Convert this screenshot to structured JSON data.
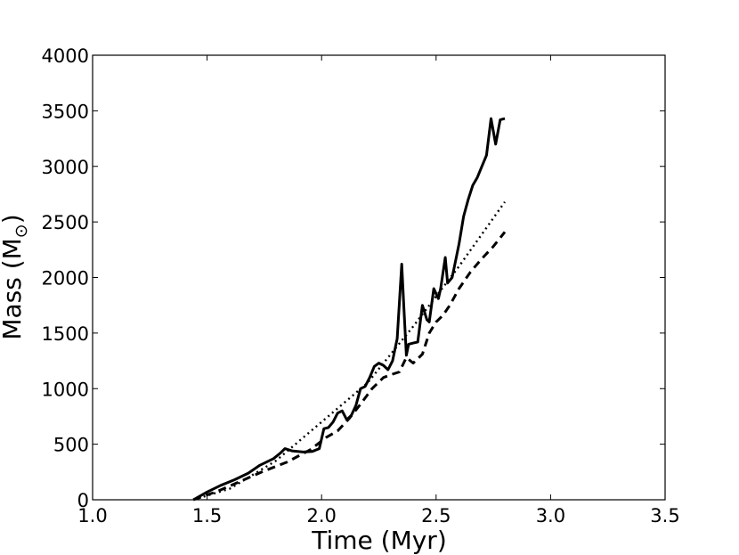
{
  "chart_data": {
    "type": "line",
    "title": "",
    "xlabel": "Time (Myr)",
    "ylabel": "Mass (M",
    "ylabel_subscript": "⊙",
    "ylabel_close": ")",
    "xlim": [
      1.0,
      3.5
    ],
    "ylim": [
      0,
      4000
    ],
    "x_ticks": [
      "1.0",
      "1.5",
      "2.0",
      "2.5",
      "3.0",
      "3.5"
    ],
    "y_ticks": [
      "0",
      "500",
      "1000",
      "1500",
      "2000",
      "2500",
      "3000",
      "3500",
      "4000"
    ],
    "grid": false,
    "legend": "none",
    "series": [
      {
        "style": "solid",
        "color": "#000000",
        "x": [
          1.44,
          1.5,
          1.56,
          1.62,
          1.68,
          1.73,
          1.79,
          1.82,
          1.84,
          1.87,
          1.92,
          1.96,
          1.99,
          2.01,
          2.03,
          2.05,
          2.07,
          2.09,
          2.11,
          2.13,
          2.15,
          2.17,
          2.19,
          2.21,
          2.23,
          2.25,
          2.27,
          2.29,
          2.31,
          2.33,
          2.35,
          2.36,
          2.37,
          2.38,
          2.4,
          2.42,
          2.44,
          2.46,
          2.47,
          2.49,
          2.51,
          2.52,
          2.54,
          2.55,
          2.57,
          2.58,
          2.6,
          2.62,
          2.64,
          2.66,
          2.68,
          2.7,
          2.72,
          2.74,
          2.76,
          2.78,
          2.8
        ],
        "values": [
          0,
          70,
          130,
          180,
          240,
          310,
          370,
          420,
          460,
          440,
          430,
          435,
          460,
          640,
          650,
          700,
          780,
          800,
          720,
          760,
          850,
          1000,
          1020,
          1100,
          1200,
          1230,
          1210,
          1170,
          1250,
          1450,
          2120,
          1700,
          1300,
          1400,
          1410,
          1420,
          1750,
          1620,
          1600,
          1900,
          1810,
          1900,
          2180,
          1950,
          2000,
          2100,
          2300,
          2550,
          2700,
          2830,
          2900,
          3000,
          3100,
          3430,
          3200,
          3420,
          3430
        ]
      },
      {
        "style": "dashed",
        "color": "#000000",
        "x": [
          1.44,
          1.55,
          1.65,
          1.75,
          1.85,
          1.95,
          2.02,
          2.07,
          2.12,
          2.17,
          2.22,
          2.27,
          2.31,
          2.34,
          2.37,
          2.4,
          2.44,
          2.47,
          2.5,
          2.53,
          2.56,
          2.6,
          2.65,
          2.7,
          2.75,
          2.8
        ],
        "values": [
          0,
          80,
          170,
          260,
          340,
          450,
          560,
          620,
          730,
          860,
          1000,
          1100,
          1130,
          1150,
          1280,
          1230,
          1310,
          1500,
          1600,
          1660,
          1750,
          1900,
          2050,
          2170,
          2280,
          2410
        ]
      },
      {
        "style": "dotted",
        "color": "#000000",
        "x": [
          1.44,
          1.6,
          1.8,
          2.0,
          2.2,
          2.4,
          2.6,
          2.8
        ],
        "values": [
          0,
          100,
          350,
          700,
          1050,
          1560,
          2100,
          2680
        ]
      }
    ]
  }
}
